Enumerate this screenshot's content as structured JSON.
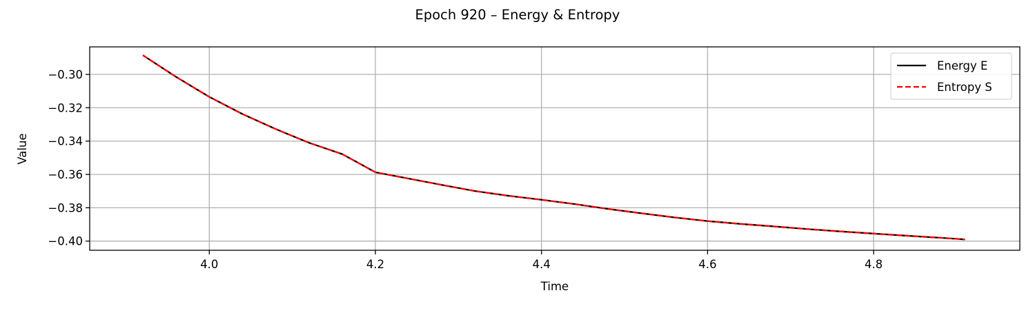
{
  "chart_data": {
    "type": "line",
    "title": "Epoch 920 – Energy & Entropy",
    "xlabel": "Time",
    "ylabel": "Value",
    "xlim": [
      3.856,
      4.976
    ],
    "ylim": [
      -0.4055,
      -0.2835
    ],
    "xticks": [
      4.0,
      4.2,
      4.4,
      4.6,
      4.8
    ],
    "xtick_labels": [
      "4.0",
      "4.2",
      "4.4",
      "4.6",
      "4.8"
    ],
    "yticks": [
      -0.3,
      -0.32,
      -0.34,
      -0.36,
      -0.38,
      -0.4
    ],
    "ytick_labels": [
      "−0.30",
      "−0.32",
      "−0.34",
      "−0.36",
      "−0.38",
      "−0.40"
    ],
    "grid": true,
    "legend_position": "top-right",
    "x": [
      3.92,
      3.96,
      4.0,
      4.04,
      4.08,
      4.12,
      4.16,
      4.2,
      4.24,
      4.28,
      4.32,
      4.36,
      4.4,
      4.44,
      4.48,
      4.52,
      4.56,
      4.6,
      4.64,
      4.68,
      4.72,
      4.76,
      4.8,
      4.84,
      4.88,
      4.91
    ],
    "series": [
      {
        "name": "Energy E",
        "color": "#000000",
        "style": "solid",
        "values": [
          -0.2885,
          -0.3015,
          -0.3135,
          -0.3238,
          -0.3328,
          -0.341,
          -0.3478,
          -0.3587,
          -0.3625,
          -0.3663,
          -0.37,
          -0.3728,
          -0.3752,
          -0.3778,
          -0.3807,
          -0.3833,
          -0.3858,
          -0.388,
          -0.3897,
          -0.3912,
          -0.3928,
          -0.3942,
          -0.3955,
          -0.3968,
          -0.398,
          -0.399
        ]
      },
      {
        "name": "Entropy S",
        "color": "#ff0000",
        "style": "dashed",
        "values": [
          -0.2885,
          -0.3015,
          -0.3135,
          -0.3238,
          -0.3328,
          -0.341,
          -0.3478,
          -0.3587,
          -0.3625,
          -0.3663,
          -0.37,
          -0.3728,
          -0.3752,
          -0.3778,
          -0.3807,
          -0.3833,
          -0.3858,
          -0.388,
          -0.3897,
          -0.3912,
          -0.3928,
          -0.3942,
          -0.3955,
          -0.3968,
          -0.398,
          -0.399
        ]
      }
    ]
  }
}
